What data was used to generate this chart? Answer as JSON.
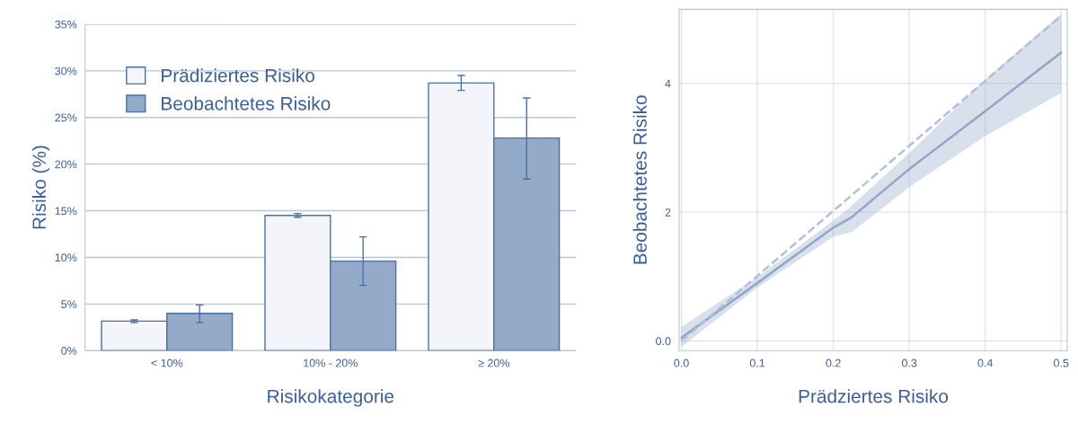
{
  "chart_data": [
    {
      "type": "bar",
      "ylabel": "Risiko (%)",
      "xlabel": "Risikokategorie",
      "categories": [
        "< 10%",
        "10% - 20%",
        "≥ 20%"
      ],
      "series": [
        {
          "name": "Prädiziertes Risiko",
          "color": "#f3f5fa",
          "values": [
            3.16,
            14.5,
            28.7
          ],
          "errors": [
            [
              3.0,
              3.3
            ],
            [
              14.3,
              14.7
            ],
            [
              27.9,
              29.5
            ]
          ]
        },
        {
          "name": "Beobachtetes Risiko",
          "color": "#93abc9",
          "values": [
            4.0,
            9.6,
            22.8
          ],
          "errors": [
            [
              3.0,
              4.9
            ],
            [
              7.0,
              12.2
            ],
            [
              18.4,
              27.1
            ]
          ]
        }
      ],
      "ylim": [
        0,
        35
      ],
      "yticks": [
        {
          "value": 0,
          "label": "0%"
        },
        {
          "value": 5,
          "label": "5%"
        },
        {
          "value": 10,
          "label": "10%"
        },
        {
          "value": 15,
          "label": "15%"
        },
        {
          "value": 20,
          "label": "20%"
        },
        {
          "value": 25,
          "label": "25%"
        },
        {
          "value": 30,
          "label": "30%"
        },
        {
          "value": 35,
          "label": "35%"
        }
      ],
      "grid": "y",
      "legend": "top left"
    },
    {
      "type": "line",
      "xlabel": "Prädziertes Risiko",
      "ylabel": "Beobachtetes Risiko",
      "series": [
        {
          "color": "#8fa6c5",
          "x": [
            0.0,
            0.1,
            0.2,
            0.224,
            0.3,
            0.4,
            0.5
          ],
          "values": [
            0.05,
            0.9,
            1.76,
            1.92,
            2.67,
            3.57,
            4.48
          ],
          "lower": [
            -0.09,
            0.83,
            1.62,
            1.69,
            2.39,
            3.18,
            3.85
          ],
          "upper": [
            0.22,
            0.99,
            1.87,
            2.1,
            2.92,
            4.06,
            5.08
          ],
          "line_style": "solid"
        },
        {
          "color": "#b3bfd2",
          "x": [
            0.0,
            0.5
          ],
          "values": [
            0.0,
            5.05
          ],
          "line_style": "dashed"
        }
      ],
      "xlim": [
        -0.003,
        0.508
      ],
      "ylim": [
        -0.15,
        5.15
      ],
      "xticks": [
        {
          "value": 0,
          "label": "0.0"
        },
        0.1,
        0.2,
        0.3,
        0.4,
        0.5
      ],
      "yticks": [
        {
          "value": 0,
          "label": "0.0"
        },
        2,
        4
      ],
      "grid": true
    }
  ]
}
